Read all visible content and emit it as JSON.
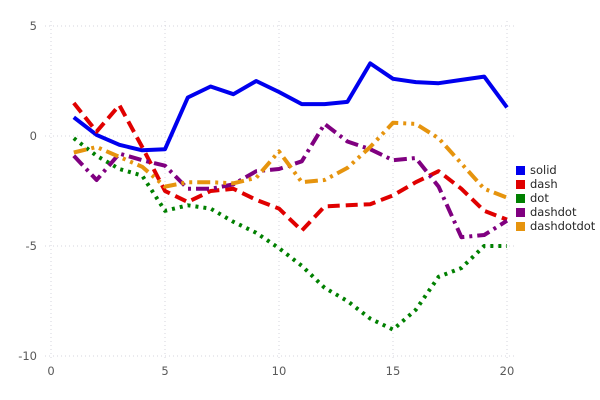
{
  "chart_data": {
    "type": "line",
    "title": "",
    "xlabel": "",
    "ylabel": "",
    "xlim": [
      -0.3,
      21.5
    ],
    "ylim": [
      -10.5,
      5.5
    ],
    "x_ticks": [
      0,
      5,
      10,
      15,
      20
    ],
    "y_ticks": [
      5,
      0,
      -5,
      -10
    ],
    "grid": "dotted",
    "legend_position": "center-right",
    "x": [
      1,
      2,
      3,
      4,
      5,
      6,
      7,
      8,
      9,
      10,
      11,
      12,
      13,
      14,
      15,
      16,
      17,
      18,
      19,
      20
    ],
    "series": [
      {
        "name": "solid",
        "color": "#0000ee",
        "dash": "",
        "values": [
          0.85,
          0.05,
          -0.4,
          -0.65,
          -0.6,
          1.75,
          2.25,
          1.9,
          2.5,
          2.0,
          1.45,
          1.45,
          1.55,
          3.3,
          2.6,
          2.45,
          2.4,
          2.55,
          2.7,
          1.3
        ]
      },
      {
        "name": "dash",
        "color": "#e00000",
        "dash": "12 6",
        "values": [
          1.5,
          0.2,
          1.4,
          -0.5,
          -2.5,
          -3.0,
          -2.5,
          -2.4,
          -2.9,
          -3.3,
          -4.3,
          -3.2,
          -3.15,
          -3.1,
          -2.7,
          -2.1,
          -1.6,
          -2.4,
          -3.4,
          -3.8
        ]
      },
      {
        "name": "dot",
        "color": "#008000",
        "dash": "3 5",
        "values": [
          -0.1,
          -0.9,
          -1.5,
          -1.8,
          -3.4,
          -3.15,
          -3.3,
          -3.9,
          -4.4,
          -5.1,
          -5.9,
          -6.9,
          -7.5,
          -8.3,
          -8.8,
          -7.9,
          -6.4,
          -6.0,
          -5.0,
          -5.0
        ]
      },
      {
        "name": "dashdot",
        "color": "#800080",
        "dash": "13 5 3 5",
        "values": [
          -0.9,
          -2.0,
          -0.8,
          -1.1,
          -1.35,
          -2.4,
          -2.4,
          -2.2,
          -1.6,
          -1.5,
          -1.15,
          0.55,
          -0.25,
          -0.6,
          -1.1,
          -1.0,
          -2.3,
          -4.6,
          -4.5,
          -3.85
        ]
      },
      {
        "name": "dashdotdot",
        "color": "#e6940e",
        "dash": "13 5 3 5 3 5",
        "values": [
          -0.75,
          -0.5,
          -0.95,
          -1.4,
          -2.3,
          -2.1,
          -2.1,
          -2.15,
          -1.9,
          -0.7,
          -2.1,
          -2.0,
          -1.45,
          -0.5,
          0.6,
          0.55,
          -0.1,
          -1.25,
          -2.4,
          -2.8
        ]
      }
    ],
    "style": {
      "grid_color": "#d4d4dc",
      "tick_label_color": "#595959",
      "line_width": 4
    }
  }
}
